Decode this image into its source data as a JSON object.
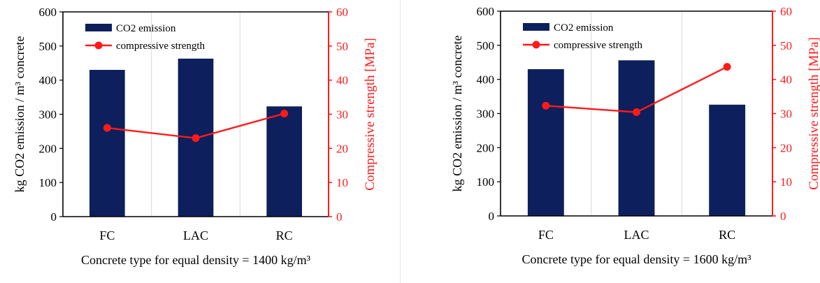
{
  "colors": {
    "bar": "#0d1f5c",
    "line": "#ff1a1a",
    "axis": "#000000",
    "grid": "#d9d9d9"
  },
  "chart_data": [
    {
      "type": "bar",
      "categories": [
        "FC",
        "LAC",
        "RC"
      ],
      "series": [
        {
          "name": "CO2 emission",
          "type": "bar",
          "axis": "left",
          "values": [
            430,
            463,
            323
          ]
        },
        {
          "name": "compressive strength",
          "type": "line",
          "axis": "right",
          "values": [
            26,
            23,
            30.2
          ]
        }
      ],
      "xlabel": "Concrete type for equal density = 1400 kg/m³",
      "ylabel": "kg CO2 emission / m³ concrete",
      "y2label": "Compressive strength [MPa]",
      "ylim": [
        0,
        600
      ],
      "y2lim": [
        0,
        60
      ],
      "yticks": [
        "0",
        "100",
        "200",
        "300",
        "400",
        "500",
        "600"
      ],
      "y2ticks": [
        "0",
        "10",
        "20",
        "30",
        "40",
        "50",
        "60"
      ],
      "grid": "vertical",
      "legend": "top-left"
    },
    {
      "type": "bar",
      "categories": [
        "FC",
        "LAC",
        "RC"
      ],
      "series": [
        {
          "name": "CO2 emission",
          "type": "bar",
          "axis": "left",
          "values": [
            430,
            456,
            326
          ]
        },
        {
          "name": "compressive strength",
          "type": "line",
          "axis": "right",
          "values": [
            32.3,
            30.4,
            43.7
          ]
        }
      ],
      "xlabel": "Concrete type for equal density = 1600 kg/m³",
      "ylabel": "kg CO2 emission / m³ concrete",
      "y2label": "Compressive strength [MPa]",
      "ylim": [
        0,
        600
      ],
      "y2lim": [
        0,
        60
      ],
      "yticks": [
        "0",
        "100",
        "200",
        "300",
        "400",
        "500",
        "600"
      ],
      "y2ticks": [
        "0",
        "10",
        "20",
        "30",
        "40",
        "50",
        "60"
      ],
      "grid": "vertical",
      "legend": "top-left"
    }
  ]
}
